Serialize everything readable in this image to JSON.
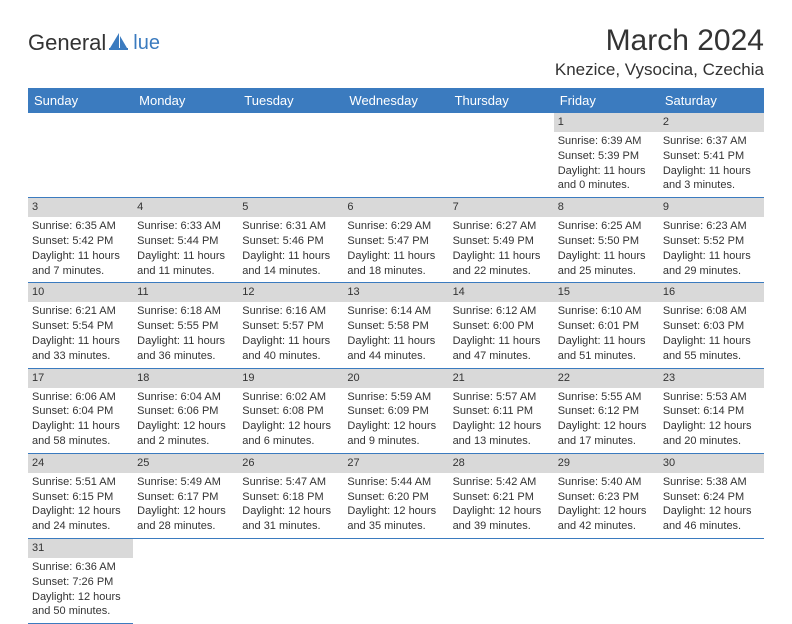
{
  "logo": {
    "text_main": "General",
    "text_sub": "lue",
    "accent_color": "#3b7bbf"
  },
  "title": "March 2024",
  "location": "Knezice, Vysocina, Czechia",
  "header_bg": "#3b7bbf",
  "header_fg": "#ffffff",
  "daybar_bg": "#d9d9d9",
  "grid_line": "#3b7bbf",
  "day_headers": [
    "Sunday",
    "Monday",
    "Tuesday",
    "Wednesday",
    "Thursday",
    "Friday",
    "Saturday"
  ],
  "weeks": [
    [
      null,
      null,
      null,
      null,
      null,
      {
        "n": "1",
        "sunrise": "Sunrise: 6:39 AM",
        "sunset": "Sunset: 5:39 PM",
        "day1": "Daylight: 11 hours",
        "day2": "and 0 minutes."
      },
      {
        "n": "2",
        "sunrise": "Sunrise: 6:37 AM",
        "sunset": "Sunset: 5:41 PM",
        "day1": "Daylight: 11 hours",
        "day2": "and 3 minutes."
      }
    ],
    [
      {
        "n": "3",
        "sunrise": "Sunrise: 6:35 AM",
        "sunset": "Sunset: 5:42 PM",
        "day1": "Daylight: 11 hours",
        "day2": "and 7 minutes."
      },
      {
        "n": "4",
        "sunrise": "Sunrise: 6:33 AM",
        "sunset": "Sunset: 5:44 PM",
        "day1": "Daylight: 11 hours",
        "day2": "and 11 minutes."
      },
      {
        "n": "5",
        "sunrise": "Sunrise: 6:31 AM",
        "sunset": "Sunset: 5:46 PM",
        "day1": "Daylight: 11 hours",
        "day2": "and 14 minutes."
      },
      {
        "n": "6",
        "sunrise": "Sunrise: 6:29 AM",
        "sunset": "Sunset: 5:47 PM",
        "day1": "Daylight: 11 hours",
        "day2": "and 18 minutes."
      },
      {
        "n": "7",
        "sunrise": "Sunrise: 6:27 AM",
        "sunset": "Sunset: 5:49 PM",
        "day1": "Daylight: 11 hours",
        "day2": "and 22 minutes."
      },
      {
        "n": "8",
        "sunrise": "Sunrise: 6:25 AM",
        "sunset": "Sunset: 5:50 PM",
        "day1": "Daylight: 11 hours",
        "day2": "and 25 minutes."
      },
      {
        "n": "9",
        "sunrise": "Sunrise: 6:23 AM",
        "sunset": "Sunset: 5:52 PM",
        "day1": "Daylight: 11 hours",
        "day2": "and 29 minutes."
      }
    ],
    [
      {
        "n": "10",
        "sunrise": "Sunrise: 6:21 AM",
        "sunset": "Sunset: 5:54 PM",
        "day1": "Daylight: 11 hours",
        "day2": "and 33 minutes."
      },
      {
        "n": "11",
        "sunrise": "Sunrise: 6:18 AM",
        "sunset": "Sunset: 5:55 PM",
        "day1": "Daylight: 11 hours",
        "day2": "and 36 minutes."
      },
      {
        "n": "12",
        "sunrise": "Sunrise: 6:16 AM",
        "sunset": "Sunset: 5:57 PM",
        "day1": "Daylight: 11 hours",
        "day2": "and 40 minutes."
      },
      {
        "n": "13",
        "sunrise": "Sunrise: 6:14 AM",
        "sunset": "Sunset: 5:58 PM",
        "day1": "Daylight: 11 hours",
        "day2": "and 44 minutes."
      },
      {
        "n": "14",
        "sunrise": "Sunrise: 6:12 AM",
        "sunset": "Sunset: 6:00 PM",
        "day1": "Daylight: 11 hours",
        "day2": "and 47 minutes."
      },
      {
        "n": "15",
        "sunrise": "Sunrise: 6:10 AM",
        "sunset": "Sunset: 6:01 PM",
        "day1": "Daylight: 11 hours",
        "day2": "and 51 minutes."
      },
      {
        "n": "16",
        "sunrise": "Sunrise: 6:08 AM",
        "sunset": "Sunset: 6:03 PM",
        "day1": "Daylight: 11 hours",
        "day2": "and 55 minutes."
      }
    ],
    [
      {
        "n": "17",
        "sunrise": "Sunrise: 6:06 AM",
        "sunset": "Sunset: 6:04 PM",
        "day1": "Daylight: 11 hours",
        "day2": "and 58 minutes."
      },
      {
        "n": "18",
        "sunrise": "Sunrise: 6:04 AM",
        "sunset": "Sunset: 6:06 PM",
        "day1": "Daylight: 12 hours",
        "day2": "and 2 minutes."
      },
      {
        "n": "19",
        "sunrise": "Sunrise: 6:02 AM",
        "sunset": "Sunset: 6:08 PM",
        "day1": "Daylight: 12 hours",
        "day2": "and 6 minutes."
      },
      {
        "n": "20",
        "sunrise": "Sunrise: 5:59 AM",
        "sunset": "Sunset: 6:09 PM",
        "day1": "Daylight: 12 hours",
        "day2": "and 9 minutes."
      },
      {
        "n": "21",
        "sunrise": "Sunrise: 5:57 AM",
        "sunset": "Sunset: 6:11 PM",
        "day1": "Daylight: 12 hours",
        "day2": "and 13 minutes."
      },
      {
        "n": "22",
        "sunrise": "Sunrise: 5:55 AM",
        "sunset": "Sunset: 6:12 PM",
        "day1": "Daylight: 12 hours",
        "day2": "and 17 minutes."
      },
      {
        "n": "23",
        "sunrise": "Sunrise: 5:53 AM",
        "sunset": "Sunset: 6:14 PM",
        "day1": "Daylight: 12 hours",
        "day2": "and 20 minutes."
      }
    ],
    [
      {
        "n": "24",
        "sunrise": "Sunrise: 5:51 AM",
        "sunset": "Sunset: 6:15 PM",
        "day1": "Daylight: 12 hours",
        "day2": "and 24 minutes."
      },
      {
        "n": "25",
        "sunrise": "Sunrise: 5:49 AM",
        "sunset": "Sunset: 6:17 PM",
        "day1": "Daylight: 12 hours",
        "day2": "and 28 minutes."
      },
      {
        "n": "26",
        "sunrise": "Sunrise: 5:47 AM",
        "sunset": "Sunset: 6:18 PM",
        "day1": "Daylight: 12 hours",
        "day2": "and 31 minutes."
      },
      {
        "n": "27",
        "sunrise": "Sunrise: 5:44 AM",
        "sunset": "Sunset: 6:20 PM",
        "day1": "Daylight: 12 hours",
        "day2": "and 35 minutes."
      },
      {
        "n": "28",
        "sunrise": "Sunrise: 5:42 AM",
        "sunset": "Sunset: 6:21 PM",
        "day1": "Daylight: 12 hours",
        "day2": "and 39 minutes."
      },
      {
        "n": "29",
        "sunrise": "Sunrise: 5:40 AM",
        "sunset": "Sunset: 6:23 PM",
        "day1": "Daylight: 12 hours",
        "day2": "and 42 minutes."
      },
      {
        "n": "30",
        "sunrise": "Sunrise: 5:38 AM",
        "sunset": "Sunset: 6:24 PM",
        "day1": "Daylight: 12 hours",
        "day2": "and 46 minutes."
      }
    ],
    [
      {
        "n": "31",
        "sunrise": "Sunrise: 6:36 AM",
        "sunset": "Sunset: 7:26 PM",
        "day1": "Daylight: 12 hours",
        "day2": "and 50 minutes."
      },
      null,
      null,
      null,
      null,
      null,
      null
    ]
  ]
}
